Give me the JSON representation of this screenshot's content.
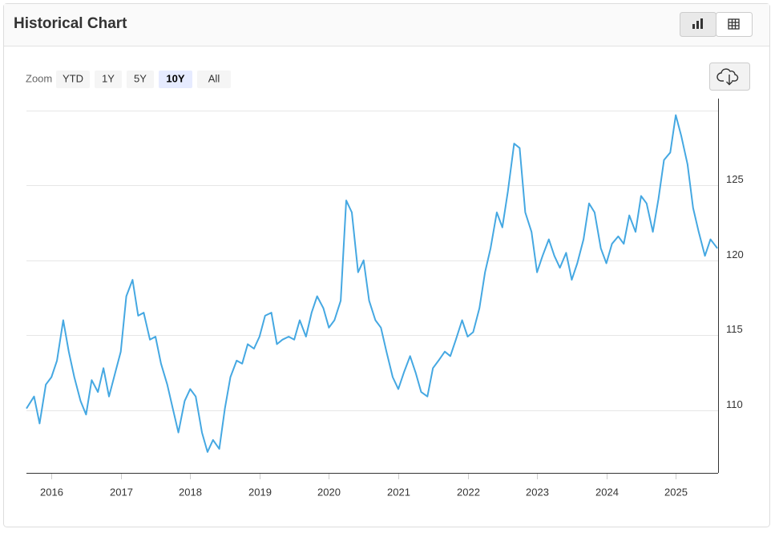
{
  "header": {
    "title": "Historical Chart"
  },
  "zoom": {
    "label": "Zoom",
    "options": [
      "YTD",
      "1Y",
      "5Y",
      "10Y",
      "All"
    ],
    "selected": "10Y"
  },
  "chart_data": {
    "type": "line",
    "xlim": [
      2015.64,
      2025.61
    ],
    "xticks": [
      2016,
      2017,
      2018,
      2019,
      2020,
      2021,
      2022,
      2023,
      2024,
      2025
    ],
    "ylim": [
      105.8,
      130
    ],
    "yticks": [
      110,
      115,
      120,
      125
    ],
    "grid": true,
    "series": [
      {
        "color": "#45a8e2",
        "x": [
          2015.64,
          2015.75,
          2015.83,
          2015.92,
          2016.0,
          2016.08,
          2016.17,
          2016.25,
          2016.33,
          2016.42,
          2016.5,
          2016.58,
          2016.67,
          2016.75,
          2016.83,
          2016.92,
          2017.0,
          2017.08,
          2017.17,
          2017.25,
          2017.33,
          2017.42,
          2017.5,
          2017.58,
          2017.67,
          2017.75,
          2017.83,
          2017.92,
          2018.0,
          2018.08,
          2018.17,
          2018.25,
          2018.33,
          2018.42,
          2018.5,
          2018.58,
          2018.67,
          2018.75,
          2018.83,
          2018.92,
          2019.0,
          2019.08,
          2019.17,
          2019.25,
          2019.33,
          2019.42,
          2019.5,
          2019.58,
          2019.67,
          2019.75,
          2019.83,
          2019.92,
          2020.0,
          2020.08,
          2020.17,
          2020.25,
          2020.33,
          2020.42,
          2020.5,
          2020.58,
          2020.67,
          2020.75,
          2020.83,
          2020.92,
          2021.0,
          2021.08,
          2021.17,
          2021.25,
          2021.33,
          2021.42,
          2021.5,
          2021.58,
          2021.67,
          2021.75,
          2021.83,
          2021.92,
          2022.0,
          2022.08,
          2022.17,
          2022.25,
          2022.33,
          2022.42,
          2022.5,
          2022.58,
          2022.67,
          2022.75,
          2022.83,
          2022.92,
          2023.0,
          2023.08,
          2023.17,
          2023.25,
          2023.33,
          2023.42,
          2023.5,
          2023.58,
          2023.67,
          2023.75,
          2023.83,
          2023.92,
          2024.0,
          2024.08,
          2024.17,
          2024.25,
          2024.33,
          2024.42,
          2024.5,
          2024.58,
          2024.67,
          2024.75,
          2024.83,
          2024.92,
          2025.0,
          2025.08,
          2025.17,
          2025.25,
          2025.33,
          2025.42,
          2025.5,
          2025.6
        ],
        "values": [
          110.1,
          110.9,
          109.1,
          111.7,
          112.2,
          113.3,
          116.0,
          113.9,
          112.2,
          110.6,
          109.7,
          112.0,
          111.2,
          112.8,
          110.9,
          112.5,
          113.9,
          117.6,
          118.7,
          116.3,
          116.5,
          114.7,
          114.9,
          113.1,
          111.7,
          110.1,
          108.5,
          110.6,
          111.4,
          110.9,
          108.5,
          107.2,
          108.0,
          107.4,
          110.1,
          112.2,
          113.3,
          113.1,
          114.4,
          114.1,
          114.9,
          116.3,
          116.5,
          114.4,
          114.7,
          114.9,
          114.7,
          116.0,
          114.9,
          116.5,
          117.6,
          116.8,
          115.5,
          116.0,
          117.3,
          124.0,
          123.2,
          119.2,
          120.0,
          117.3,
          116.0,
          115.5,
          113.9,
          112.2,
          111.4,
          112.5,
          113.6,
          112.5,
          111.2,
          110.9,
          112.8,
          113.3,
          113.9,
          113.6,
          114.7,
          116.0,
          114.9,
          115.2,
          116.8,
          119.2,
          120.8,
          123.2,
          122.2,
          124.6,
          127.8,
          127.5,
          123.2,
          121.9,
          119.2,
          120.3,
          121.4,
          120.3,
          119.5,
          120.5,
          118.7,
          119.8,
          121.4,
          123.8,
          123.2,
          120.8,
          119.8,
          121.1,
          121.6,
          121.1,
          123.0,
          121.9,
          124.3,
          123.8,
          121.9,
          124.1,
          126.7,
          127.2,
          129.7,
          128.3,
          126.4,
          123.5,
          121.9,
          120.3,
          121.4,
          120.8
        ]
      }
    ]
  }
}
